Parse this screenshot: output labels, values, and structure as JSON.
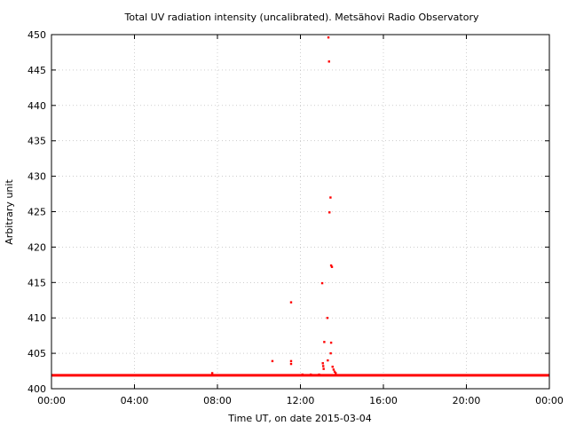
{
  "chart_data": {
    "type": "scatter",
    "title": "Total UV radiation intensity (uncalibrated). Metsähovi Radio Observatory",
    "xlabel": "Time UT, on date 2015-03-04",
    "ylabel": "Arbitrary unit",
    "xlim": [
      0,
      24
    ],
    "ylim": [
      400,
      450
    ],
    "x_ticks": [
      {
        "value": 0,
        "label": "00:00"
      },
      {
        "value": 4,
        "label": "04:00"
      },
      {
        "value": 8,
        "label": "08:00"
      },
      {
        "value": 12,
        "label": "12:00"
      },
      {
        "value": 16,
        "label": "16:00"
      },
      {
        "value": 20,
        "label": "20:00"
      },
      {
        "value": 24,
        "label": "00:00"
      }
    ],
    "y_ticks": [
      {
        "value": 400,
        "label": "400"
      },
      {
        "value": 405,
        "label": "405"
      },
      {
        "value": 410,
        "label": "410"
      },
      {
        "value": 415,
        "label": "415"
      },
      {
        "value": 420,
        "label": "420"
      },
      {
        "value": 425,
        "label": "425"
      },
      {
        "value": 430,
        "label": "430"
      },
      {
        "value": 435,
        "label": "435"
      },
      {
        "value": 440,
        "label": "440"
      },
      {
        "value": 445,
        "label": "445"
      },
      {
        "value": 450,
        "label": "450"
      }
    ],
    "grid": true,
    "legend": "none",
    "series": [
      {
        "color": "#ff0000",
        "baseline": {
          "x_start": 0,
          "x_end": 24,
          "y": 401.9
        },
        "points": [
          [
            7.75,
            402.2
          ],
          [
            10.65,
            403.9
          ],
          [
            11.55,
            412.2
          ],
          [
            11.55,
            403.9
          ],
          [
            11.55,
            403.5
          ],
          [
            13.05,
            414.9
          ],
          [
            13.08,
            403.6
          ],
          [
            13.1,
            403.2
          ],
          [
            13.12,
            402.8
          ],
          [
            13.15,
            406.6
          ],
          [
            13.3,
            410.0
          ],
          [
            13.32,
            404.0
          ],
          [
            13.35,
            449.6
          ],
          [
            13.38,
            446.2
          ],
          [
            13.4,
            424.9
          ],
          [
            13.45,
            427.0
          ],
          [
            13.48,
            417.4
          ],
          [
            13.52,
            417.2
          ],
          [
            13.48,
            406.5
          ],
          [
            13.46,
            405.0
          ],
          [
            13.55,
            403.1
          ],
          [
            13.6,
            402.7
          ],
          [
            13.65,
            402.4
          ],
          [
            13.7,
            402.2
          ],
          [
            12.9,
            402.0
          ],
          [
            12.5,
            402.0
          ],
          [
            12.1,
            402.0
          ]
        ]
      }
    ]
  }
}
